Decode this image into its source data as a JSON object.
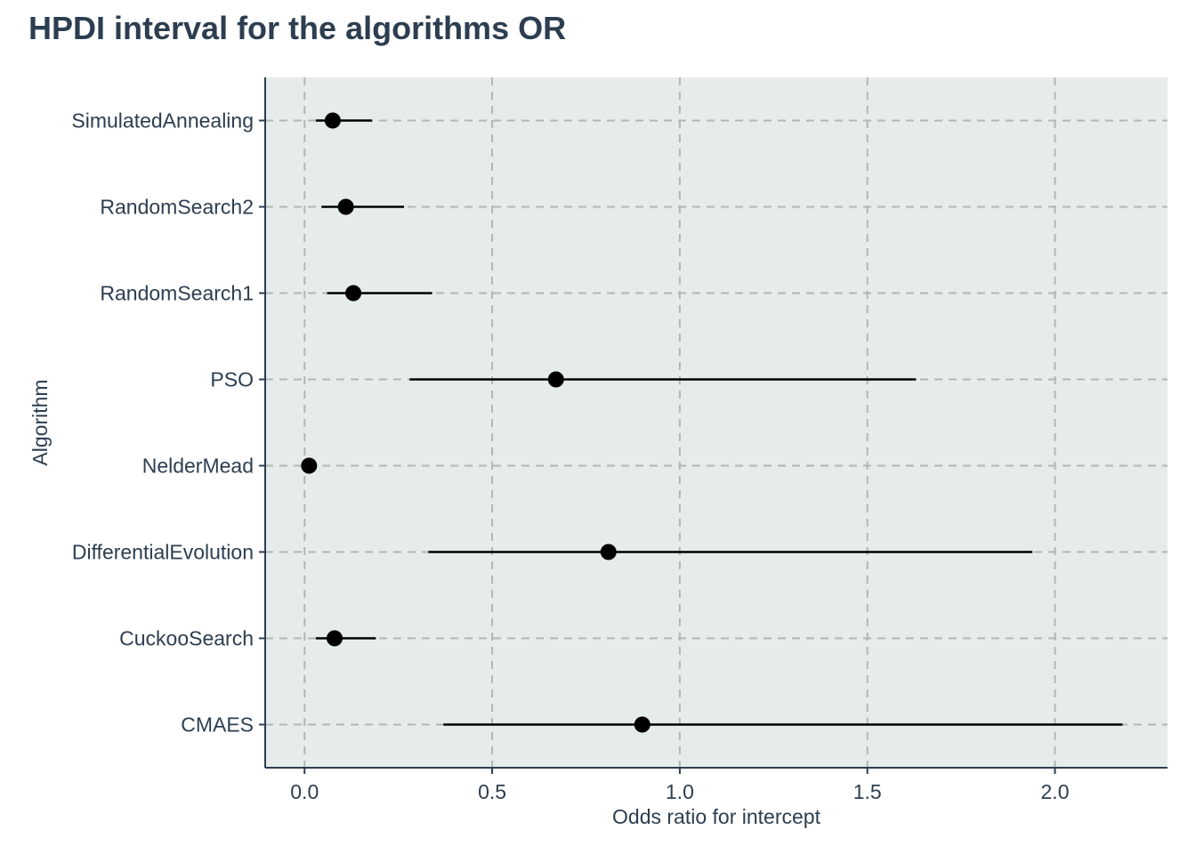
{
  "chart_data": {
    "type": "scatter",
    "title": "HPDI interval for the algorithms OR",
    "xlabel": "Odds ratio for intercept",
    "ylabel": "Algorithm",
    "xlim": [
      -0.105,
      2.3
    ],
    "x_ticks": [
      0.0,
      0.5,
      1.0,
      1.5,
      2.0
    ],
    "x_tick_labels": [
      "0.0",
      "0.5",
      "1.0",
      "1.5",
      "2.0"
    ],
    "grid": true,
    "legend": "none",
    "colors": {
      "panel_background": "#e6ecec",
      "grid": "#b2b6b6",
      "axis": "#2c3e50",
      "marks": "#000000"
    },
    "categories": [
      "CMAES",
      "CuckooSearch",
      "DifferentialEvolution",
      "NelderMead",
      "PSO",
      "RandomSearch1",
      "RandomSearch2",
      "SimulatedAnnealing"
    ],
    "points": [
      {
        "algorithm": "CMAES",
        "estimate": 0.9,
        "lower": 0.37,
        "upper": 2.18
      },
      {
        "algorithm": "CuckooSearch",
        "estimate": 0.08,
        "lower": 0.03,
        "upper": 0.19
      },
      {
        "algorithm": "DifferentialEvolution",
        "estimate": 0.81,
        "lower": 0.33,
        "upper": 1.94
      },
      {
        "algorithm": "NelderMead",
        "estimate": 0.012,
        "lower": 0.005,
        "upper": 0.03
      },
      {
        "algorithm": "PSO",
        "estimate": 0.67,
        "lower": 0.28,
        "upper": 1.63
      },
      {
        "algorithm": "RandomSearch1",
        "estimate": 0.13,
        "lower": 0.06,
        "upper": 0.34
      },
      {
        "algorithm": "RandomSearch2",
        "estimate": 0.11,
        "lower": 0.045,
        "upper": 0.265
      },
      {
        "algorithm": "SimulatedAnnealing",
        "estimate": 0.075,
        "lower": 0.03,
        "upper": 0.18
      }
    ]
  }
}
